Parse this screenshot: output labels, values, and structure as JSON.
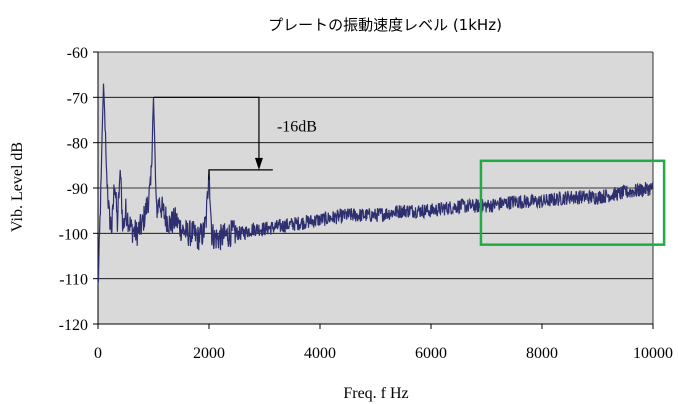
{
  "chart_data": {
    "type": "line",
    "title": "プレートの振動速度レベル (1kHz)",
    "xlabel": "Freq. f Hz",
    "ylabel": "Vib. Level dB",
    "xlim": [
      0,
      10000
    ],
    "ylim": [
      -120,
      -60
    ],
    "xticks": [
      0,
      2000,
      4000,
      6000,
      8000,
      10000
    ],
    "yticks": [
      -60,
      -70,
      -80,
      -90,
      -100,
      -110,
      -120
    ],
    "grid": true,
    "plot_background": "#d9d9d9",
    "series": [
      {
        "color": "#2e2f6e",
        "x": [
          0,
          20,
          40,
          60,
          80,
          100,
          120,
          150,
          200,
          250,
          300,
          350,
          400,
          450,
          500,
          600,
          700,
          800,
          900,
          950,
          1000,
          1050,
          1100,
          1200,
          1300,
          1400,
          1500,
          1600,
          1700,
          1800,
          1900,
          1950,
          2000,
          2050,
          2100,
          2200,
          2400,
          2600,
          2800,
          3000,
          3500,
          4000,
          4500,
          5000,
          5500,
          6000,
          6500,
          7000,
          7500,
          8000,
          8500,
          9000,
          9500,
          10000
        ],
        "y": [
          -112,
          -105,
          -95,
          -88,
          -75,
          -67,
          -73,
          -85,
          -96,
          -99,
          -88,
          -98,
          -86,
          -99,
          -95,
          -99,
          -100,
          -98,
          -93,
          -90,
          -70,
          -95,
          -93,
          -96,
          -98,
          -97,
          -99,
          -100,
          -100,
          -101,
          -100,
          -97,
          -86,
          -100,
          -101,
          -101,
          -100,
          -100,
          -99,
          -99,
          -98,
          -97,
          -96,
          -96,
          -95,
          -95,
          -94,
          -94,
          -93,
          -93,
          -92,
          -92,
          -91,
          -90
        ]
      }
    ],
    "annotations": [
      {
        "text": "-16dB",
        "from": [
          1000,
          -70
        ],
        "to": [
          2000,
          -86
        ]
      }
    ],
    "highlight_box": {
      "x": [
        6900,
        10200
      ],
      "y": [
        -102.5,
        -84
      ],
      "color": "#22aa44"
    }
  }
}
